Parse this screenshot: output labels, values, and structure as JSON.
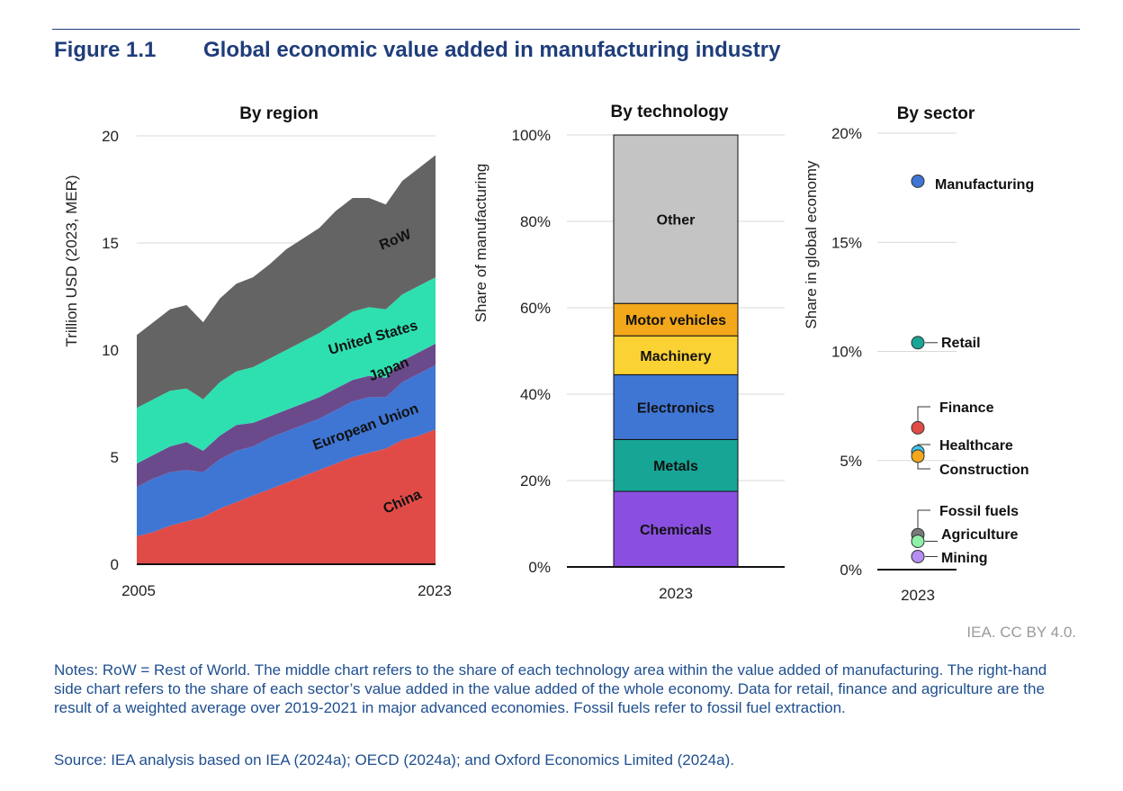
{
  "figure": {
    "label": "Figure 1.1",
    "title": "Global economic value added in manufacturing industry",
    "credit": "IEA. CC BY 4.0.",
    "notes": "Notes: RoW = Rest of World. The middle chart refers to the share of each technology area within the value added of manufacturing. The right-hand side chart refers to the share of each sector’s value added in the value added of the whole economy. Data for retail, finance and agriculture are the result of a weighted average over 2019-2021 in major advanced economies. Fossil fuels refer to fossil fuel extraction.",
    "source": "Source: IEA analysis based on IEA (2024a); OECD (2024a); and Oxford Economics Limited (2024a)."
  },
  "chart_data": [
    {
      "type": "area",
      "stacked": true,
      "title": "By region",
      "ylabel": "Trillion USD (2023, MER)",
      "ylim": [
        0,
        20
      ],
      "yticks": [
        "0",
        "5",
        "10",
        "15",
        "20"
      ],
      "xtick_labels": [
        "2005",
        "2023"
      ],
      "grid": true,
      "x": [
        2005,
        2006,
        2007,
        2008,
        2009,
        2010,
        2011,
        2012,
        2013,
        2014,
        2015,
        2016,
        2017,
        2018,
        2019,
        2020,
        2021,
        2022,
        2023
      ],
      "series": [
        {
          "name": "China",
          "color": "#e14b47",
          "values": [
            1.3,
            1.5,
            1.8,
            2.0,
            2.2,
            2.6,
            2.9,
            3.2,
            3.5,
            3.8,
            4.1,
            4.4,
            4.7,
            5.0,
            5.2,
            5.4,
            5.8,
            6.0,
            6.3
          ]
        },
        {
          "name": "European Union",
          "color": "#3f76d4",
          "values": [
            2.3,
            2.5,
            2.5,
            2.4,
            2.1,
            2.3,
            2.4,
            2.3,
            2.4,
            2.4,
            2.4,
            2.4,
            2.5,
            2.6,
            2.6,
            2.4,
            2.7,
            2.9,
            3.0
          ]
        },
        {
          "name": "Japan",
          "color": "#6b4a8c",
          "values": [
            1.1,
            1.1,
            1.2,
            1.3,
            1.0,
            1.1,
            1.2,
            1.1,
            1.0,
            1.0,
            1.0,
            1.0,
            1.0,
            1.0,
            1.0,
            0.9,
            1.0,
            1.0,
            1.0
          ]
        },
        {
          "name": "United States",
          "color": "#2ee0b0",
          "values": [
            2.6,
            2.6,
            2.6,
            2.5,
            2.4,
            2.5,
            2.5,
            2.6,
            2.7,
            2.8,
            2.9,
            3.0,
            3.1,
            3.2,
            3.2,
            3.2,
            3.1,
            3.1,
            3.1
          ]
        },
        {
          "name": "RoW",
          "color": "#646464",
          "values": [
            3.4,
            3.6,
            3.8,
            3.9,
            3.6,
            3.9,
            4.1,
            4.2,
            4.4,
            4.7,
            4.8,
            4.9,
            5.2,
            5.3,
            5.1,
            4.9,
            5.3,
            5.5,
            5.7
          ]
        }
      ]
    },
    {
      "type": "bar",
      "stacked": true,
      "title": "By technology",
      "ylabel": "Share of manufacturing",
      "ylim": [
        0,
        100
      ],
      "yticks": [
        "0%",
        "20%",
        "40%",
        "60%",
        "80%",
        "100%"
      ],
      "categories": [
        "2023"
      ],
      "grid": true,
      "series": [
        {
          "name": "Chemicals",
          "color": "#8a4fe0",
          "values": [
            17.5
          ]
        },
        {
          "name": "Metals",
          "color": "#17a596",
          "values": [
            12
          ]
        },
        {
          "name": "Electronics",
          "color": "#3f76d4",
          "values": [
            15
          ]
        },
        {
          "name": "Machinery",
          "color": "#fbd234",
          "values": [
            9
          ]
        },
        {
          "name": "Motor vehicles",
          "color": "#f3a71a",
          "values": [
            7.5
          ]
        },
        {
          "name": "Other",
          "color": "#c4c4c4",
          "values": [
            39
          ]
        }
      ]
    },
    {
      "type": "scatter",
      "title": "By sector",
      "ylabel": "Share in global economy",
      "ylim": [
        0,
        20
      ],
      "yticks": [
        "0%",
        "5%",
        "10%",
        "15%",
        "20%"
      ],
      "categories": [
        "2023"
      ],
      "grid": true,
      "points": [
        {
          "name": "Manufacturing",
          "color": "#3f76d4",
          "value": 17.8
        },
        {
          "name": "Retail",
          "color": "#17a596",
          "value": 10.4
        },
        {
          "name": "Finance",
          "color": "#e14b47",
          "value": 6.5
        },
        {
          "name": "Healthcare",
          "color": "#3fc8f0",
          "value": 5.4
        },
        {
          "name": "Construction",
          "color": "#f3a71a",
          "value": 5.2
        },
        {
          "name": "Fossil fuels",
          "color": "#7a7a7a",
          "value": 1.6
        },
        {
          "name": "Agriculture",
          "color": "#8ff0a8",
          "value": 1.3
        },
        {
          "name": "Mining",
          "color": "#b48ef0",
          "value": 0.6
        }
      ]
    }
  ]
}
